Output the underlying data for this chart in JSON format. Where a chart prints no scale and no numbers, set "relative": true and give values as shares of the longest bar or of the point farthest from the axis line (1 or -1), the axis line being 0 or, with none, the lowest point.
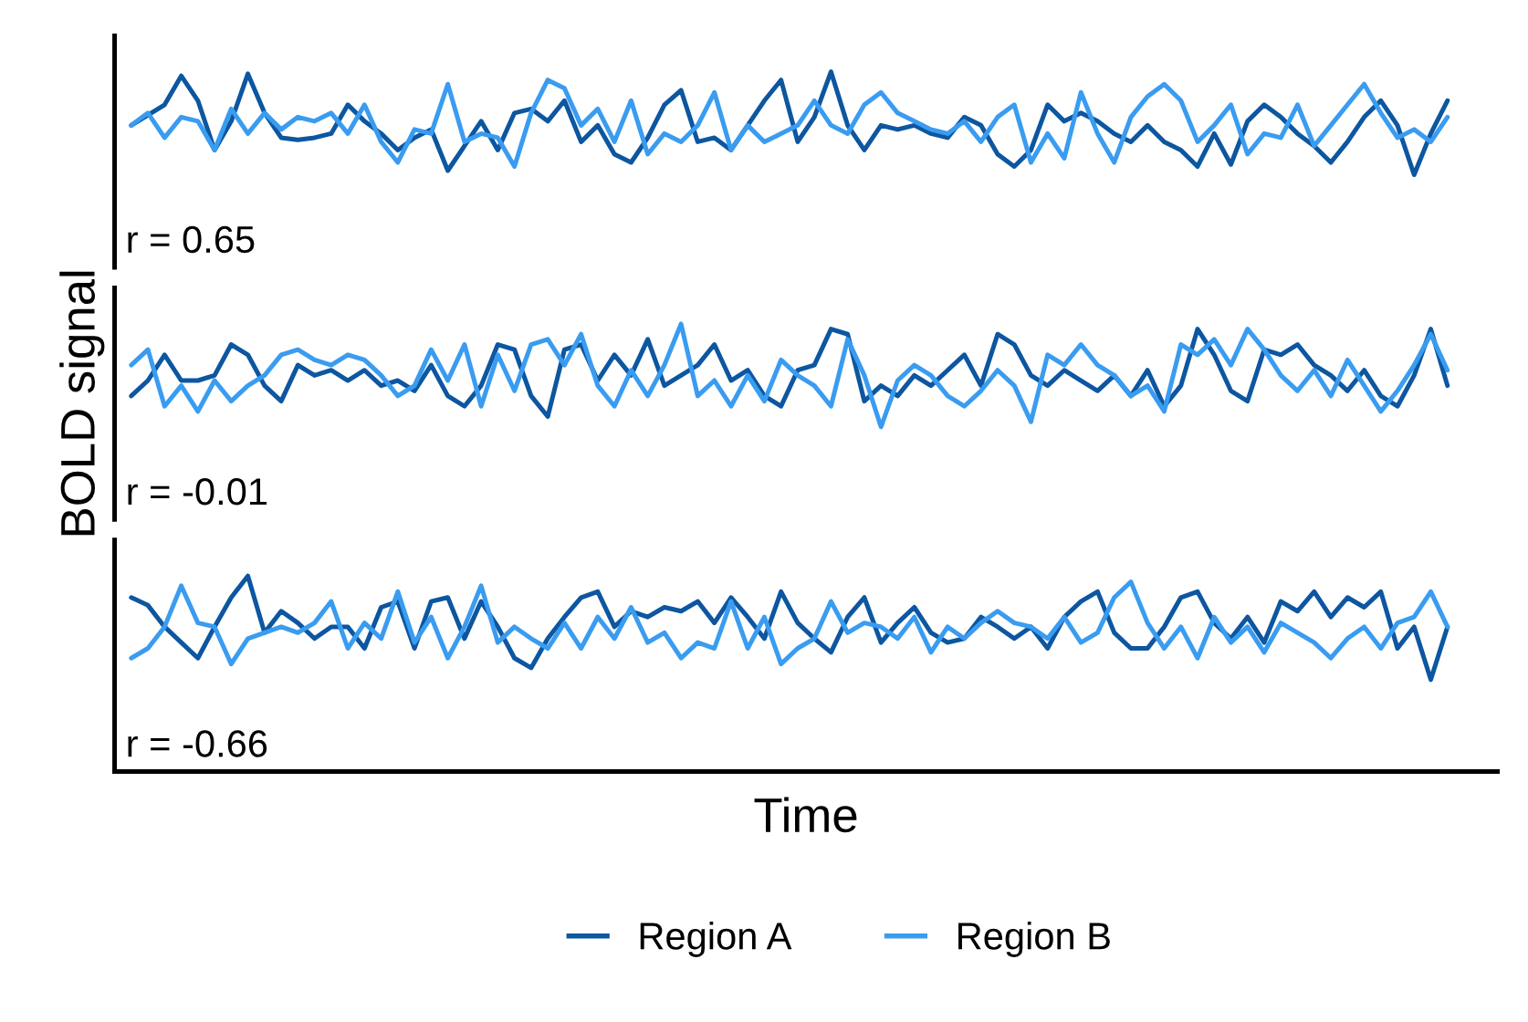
{
  "chart_data": [
    {
      "type": "line",
      "relative": true,
      "tick_labels": false,
      "legend": "bottom",
      "categories": [
        null,
        null,
        null,
        null,
        null,
        null,
        null,
        null,
        null,
        null,
        null,
        null,
        null,
        null,
        null,
        null,
        null,
        null,
        null,
        null,
        null,
        null,
        null,
        null,
        null,
        null,
        null,
        null,
        null,
        null,
        null,
        null,
        null,
        null,
        null,
        null,
        null,
        null,
        null,
        null,
        null,
        null,
        null,
        null,
        null,
        null,
        null,
        null,
        null,
        null,
        null,
        null,
        null,
        null,
        null,
        null,
        null,
        null,
        null,
        null,
        null,
        null,
        null,
        null,
        null,
        null,
        null,
        null,
        null,
        null,
        null,
        null,
        null,
        null,
        null,
        null,
        null,
        null,
        null,
        null
      ],
      "annotations": [
        "r = 0.65"
      ],
      "series": [
        {
          "name": "Region A",
          "color": "#0d56a0",
          "values": [
            0.48,
            0.58,
            0.68,
            0.96,
            0.72,
            0.24,
            0.52,
            0.98,
            0.6,
            0.36,
            0.34,
            0.36,
            0.4,
            0.68,
            0.52,
            0.4,
            0.24,
            0.36,
            0.44,
            0.04,
            0.28,
            0.52,
            0.24,
            0.6,
            0.64,
            0.52,
            0.72,
            0.32,
            0.48,
            0.2,
            0.12,
            0.36,
            0.68,
            0.82,
            0.32,
            0.36,
            0.24,
            0.48,
            0.72,
            0.92,
            0.32,
            0.56,
            1.0,
            0.48,
            0.24,
            0.48,
            0.44,
            0.48,
            0.4,
            0.36,
            0.56,
            0.48,
            0.2,
            0.08,
            0.24,
            0.68,
            0.52,
            0.6,
            0.52,
            0.4,
            0.32,
            0.48,
            0.32,
            0.24,
            0.08,
            0.4,
            0.1,
            0.52,
            0.68,
            0.56,
            0.4,
            0.28,
            0.12,
            0.32,
            0.56,
            0.72,
            0.48,
            0.0,
            0.4,
            0.72
          ]
        },
        {
          "name": "Region B",
          "color": "#3a9cf0",
          "values": [
            0.48,
            0.6,
            0.36,
            0.56,
            0.52,
            0.24,
            0.64,
            0.4,
            0.6,
            0.44,
            0.56,
            0.52,
            0.6,
            0.4,
            0.68,
            0.32,
            0.12,
            0.44,
            0.4,
            0.88,
            0.32,
            0.4,
            0.36,
            0.08,
            0.6,
            0.92,
            0.84,
            0.48,
            0.64,
            0.32,
            0.72,
            0.2,
            0.4,
            0.32,
            0.48,
            0.8,
            0.24,
            0.48,
            0.32,
            0.4,
            0.48,
            0.72,
            0.48,
            0.4,
            0.68,
            0.8,
            0.6,
            0.52,
            0.44,
            0.4,
            0.52,
            0.32,
            0.56,
            0.68,
            0.12,
            0.4,
            0.16,
            0.8,
            0.4,
            0.12,
            0.56,
            0.76,
            0.88,
            0.72,
            0.32,
            0.48,
            0.68,
            0.2,
            0.4,
            0.36,
            0.68,
            0.28,
            0.48,
            0.68,
            0.88,
            0.6,
            0.36,
            0.44,
            0.32,
            0.56
          ]
        }
      ]
    },
    {
      "type": "line",
      "relative": true,
      "tick_labels": false,
      "ylabel": "BOLD signal",
      "categories": [
        null,
        null,
        null,
        null,
        null,
        null,
        null,
        null,
        null,
        null,
        null,
        null,
        null,
        null,
        null,
        null,
        null,
        null,
        null,
        null,
        null,
        null,
        null,
        null,
        null,
        null,
        null,
        null,
        null,
        null,
        null,
        null,
        null,
        null,
        null,
        null,
        null,
        null,
        null,
        null,
        null,
        null,
        null,
        null,
        null,
        null,
        null,
        null,
        null,
        null,
        null,
        null,
        null,
        null,
        null,
        null,
        null,
        null,
        null,
        null,
        null,
        null,
        null,
        null,
        null,
        null,
        null,
        null,
        null,
        null,
        null,
        null,
        null,
        null,
        null,
        null,
        null,
        null,
        null,
        null
      ],
      "annotations": [
        "r = -0.01"
      ],
      "series": [
        {
          "color": "#0d56a0",
          "values": [
            0.3,
            0.45,
            0.7,
            0.45,
            0.45,
            0.5,
            0.8,
            0.7,
            0.4,
            0.25,
            0.6,
            0.5,
            0.55,
            0.45,
            0.55,
            0.4,
            0.45,
            0.35,
            0.6,
            0.3,
            0.2,
            0.4,
            0.8,
            0.75,
            0.3,
            0.1,
            0.75,
            0.8,
            0.45,
            0.7,
            0.5,
            0.85,
            0.4,
            0.5,
            0.6,
            0.8,
            0.45,
            0.55,
            0.3,
            0.2,
            0.55,
            0.6,
            0.95,
            0.9,
            0.25,
            0.4,
            0.3,
            0.5,
            0.4,
            0.55,
            0.7,
            0.4,
            0.9,
            0.8,
            0.5,
            0.4,
            0.55,
            0.45,
            0.35,
            0.5,
            0.3,
            0.55,
            0.2,
            0.4,
            0.95,
            0.7,
            0.35,
            0.25,
            0.75,
            0.7,
            0.8,
            0.6,
            0.5,
            0.35,
            0.55,
            0.3,
            0.2,
            0.5,
            0.95,
            0.4
          ]
        },
        {
          "color": "#3a9cf0",
          "values": [
            0.6,
            0.75,
            0.2,
            0.4,
            0.15,
            0.45,
            0.25,
            0.4,
            0.5,
            0.7,
            0.75,
            0.65,
            0.6,
            0.7,
            0.65,
            0.5,
            0.3,
            0.4,
            0.75,
            0.45,
            0.8,
            0.2,
            0.7,
            0.35,
            0.8,
            0.85,
            0.6,
            0.9,
            0.4,
            0.2,
            0.55,
            0.3,
            0.6,
            1.0,
            0.3,
            0.45,
            0.2,
            0.5,
            0.25,
            0.65,
            0.5,
            0.4,
            0.2,
            0.85,
            0.5,
            0.0,
            0.45,
            0.6,
            0.5,
            0.3,
            0.2,
            0.35,
            0.55,
            0.4,
            0.05,
            0.7,
            0.6,
            0.8,
            0.6,
            0.5,
            0.3,
            0.4,
            0.15,
            0.8,
            0.7,
            0.85,
            0.6,
            0.95,
            0.75,
            0.5,
            0.35,
            0.55,
            0.3,
            0.65,
            0.4,
            0.15,
            0.35,
            0.6,
            0.9,
            0.55
          ]
        }
      ]
    },
    {
      "type": "line",
      "relative": true,
      "tick_labels": false,
      "xlabel": "Time",
      "categories": [
        null,
        null,
        null,
        null,
        null,
        null,
        null,
        null,
        null,
        null,
        null,
        null,
        null,
        null,
        null,
        null,
        null,
        null,
        null,
        null,
        null,
        null,
        null,
        null,
        null,
        null,
        null,
        null,
        null,
        null,
        null,
        null,
        null,
        null,
        null,
        null,
        null,
        null,
        null,
        null,
        null,
        null,
        null,
        null,
        null,
        null,
        null,
        null,
        null,
        null,
        null,
        null,
        null,
        null,
        null,
        null,
        null,
        null,
        null,
        null,
        null,
        null,
        null,
        null,
        null,
        null,
        null,
        null,
        null,
        null,
        null,
        null,
        null,
        null,
        null,
        null,
        null,
        null,
        null,
        null
      ],
      "annotations": [
        "r = -0.66"
      ],
      "series": [
        {
          "color": "#0d56a0",
          "values": [
            0.89,
            0.85,
            0.74,
            0.66,
            0.58,
            0.74,
            0.89,
            1.0,
            0.71,
            0.82,
            0.76,
            0.68,
            0.74,
            0.74,
            0.63,
            0.84,
            0.87,
            0.63,
            0.87,
            0.89,
            0.68,
            0.87,
            0.74,
            0.58,
            0.53,
            0.68,
            0.79,
            0.89,
            0.92,
            0.74,
            0.82,
            0.79,
            0.84,
            0.82,
            0.87,
            0.76,
            0.89,
            0.79,
            0.68,
            0.92,
            0.76,
            0.68,
            0.61,
            0.79,
            0.89,
            0.66,
            0.76,
            0.84,
            0.71,
            0.66,
            0.68,
            0.79,
            0.74,
            0.68,
            0.74,
            0.63,
            0.79,
            0.87,
            0.92,
            0.71,
            0.63,
            0.63,
            0.74,
            0.89,
            0.92,
            0.76,
            0.68,
            0.79,
            0.66,
            0.87,
            0.82,
            0.92,
            0.79,
            0.89,
            0.84,
            0.92,
            0.63,
            0.74,
            0.47,
            0.74
          ]
        },
        {
          "color": "#3a9cf0",
          "values": [
            0.58,
            0.63,
            0.74,
            0.95,
            0.76,
            0.74,
            0.55,
            0.68,
            0.71,
            0.74,
            0.71,
            0.76,
            0.87,
            0.63,
            0.76,
            0.68,
            0.92,
            0.66,
            0.79,
            0.58,
            0.74,
            0.95,
            0.66,
            0.74,
            0.68,
            0.63,
            0.76,
            0.63,
            0.79,
            0.68,
            0.84,
            0.66,
            0.71,
            0.58,
            0.66,
            0.63,
            0.87,
            0.63,
            0.79,
            0.55,
            0.63,
            0.68,
            0.87,
            0.71,
            0.76,
            0.74,
            0.68,
            0.79,
            0.61,
            0.74,
            0.68,
            0.76,
            0.82,
            0.76,
            0.74,
            0.68,
            0.79,
            0.66,
            0.71,
            0.89,
            0.97,
            0.76,
            0.63,
            0.74,
            0.58,
            0.79,
            0.66,
            0.74,
            0.61,
            0.76,
            0.71,
            0.66,
            0.58,
            0.68,
            0.74,
            0.63,
            0.76,
            0.79,
            0.92,
            0.74
          ]
        }
      ]
    }
  ]
}
